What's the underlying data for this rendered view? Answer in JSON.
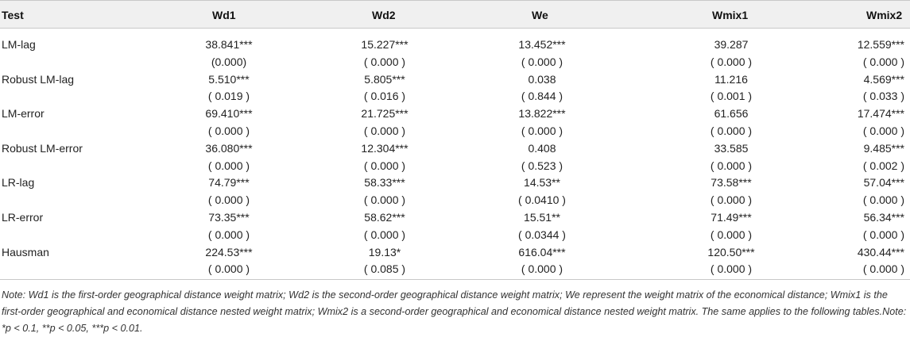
{
  "header": {
    "test": "Test",
    "wd1": "Wd1",
    "wd2": "Wd2",
    "we": "We",
    "wmix1": "Wmix1",
    "wmix2": "Wmix2"
  },
  "rows": [
    {
      "label": "LM-lag",
      "vals": [
        "38.841***",
        "15.227***",
        "13.452***",
        "39.287",
        "12.559***"
      ]
    },
    {
      "label": "",
      "vals": [
        "(0.000)",
        "( 0.000 )",
        "( 0.000 )",
        "( 0.000 )",
        "( 0.000 )"
      ]
    },
    {
      "label": "Robust LM-lag",
      "vals": [
        "5.510***",
        "5.805***",
        "0.038",
        "11.216",
        "4.569***"
      ]
    },
    {
      "label": "",
      "vals": [
        "( 0.019 )",
        "( 0.016 )",
        "( 0.844 )",
        "( 0.001 )",
        "( 0.033 )"
      ]
    },
    {
      "label": "LM-error",
      "vals": [
        "69.410***",
        "21.725***",
        "13.822***",
        "61.656",
        "17.474***"
      ]
    },
    {
      "label": "",
      "vals": [
        "( 0.000 )",
        "( 0.000 )",
        "( 0.000 )",
        "( 0.000 )",
        "( 0.000 )"
      ]
    },
    {
      "label": "Robust LM-error",
      "vals": [
        "36.080***",
        "12.304***",
        "0.408",
        "33.585",
        "9.485***"
      ]
    },
    {
      "label": "",
      "vals": [
        "( 0.000 )",
        "( 0.000 )",
        "( 0.523 )",
        "( 0.000 )",
        "( 0.002 )"
      ]
    },
    {
      "label": "LR-lag",
      "vals": [
        "74.79***",
        "58.33***",
        "14.53**",
        "73.58***",
        "57.04***"
      ]
    },
    {
      "label": "",
      "vals": [
        "( 0.000 )",
        "( 0.000 )",
        "( 0.0410 )",
        "( 0.000 )",
        "( 0.000 )"
      ]
    },
    {
      "label": "LR-error",
      "vals": [
        "73.35***",
        "58.62***",
        "15.51**",
        "71.49***",
        "56.34***"
      ]
    },
    {
      "label": "",
      "vals": [
        "( 0.000 )",
        "( 0.000 )",
        "( 0.0344 )",
        "( 0.000 )",
        "( 0.000 )"
      ]
    },
    {
      "label": "Hausman",
      "vals": [
        "224.53***",
        "19.13*",
        "616.04***",
        "120.50***",
        "430.44***"
      ]
    },
    {
      "label": "",
      "vals": [
        "( 0.000 )",
        "( 0.085 )",
        "( 0.000 )",
        "( 0.000 )",
        "( 0.000 )"
      ]
    }
  ],
  "note": "Note: Wd1 is the first-order geographical distance weight matrix; Wd2 is the second-order geographical distance weight matrix; We represent the weight matrix of the economical distance; Wmix1 is the first-order geographical and economical distance nested weight matrix; Wmix2 is a second-order geographical and economical distance nested weight matrix. The same applies to the following tables.Note: *p < 0.1, **p < 0.05, ***p < 0.01."
}
